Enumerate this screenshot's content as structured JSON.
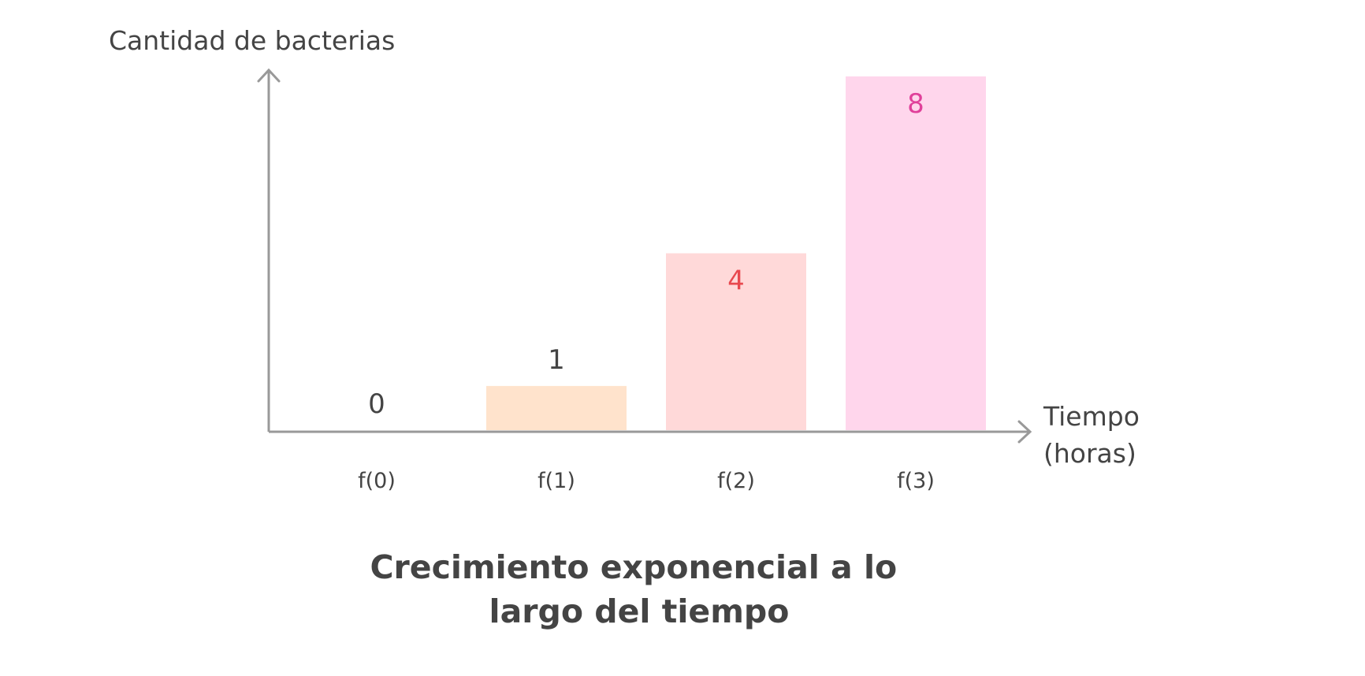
{
  "chart_data": {
    "type": "bar",
    "title": "Crecimiento exponencial a lo largo del tiempo",
    "title_lines": [
      "Crecimiento exponencial a lo",
      "largo del tiempo"
    ],
    "ylabel": "Cantidad de bacterias",
    "xlabel": "Tiempo (horas)",
    "xlabel_lines": [
      "Tiempo",
      "(horas)"
    ],
    "categories": [
      "f(0)",
      "f(1)",
      "f(2)",
      "f(3)"
    ],
    "values": [
      0,
      1,
      4,
      8
    ],
    "value_labels": [
      "0",
      "1",
      "4",
      "8"
    ],
    "ylim": [
      0,
      8
    ],
    "grid": false,
    "legend": "none",
    "colors": {
      "bars": [
        "#ffe3cc",
        "#ffe3cc",
        "#ffd9d9",
        "#ffd6ec"
      ],
      "value_text": [
        "#444444",
        "#444444",
        "#e8494f",
        "#e0409a"
      ],
      "axis": "#999999",
      "text": "#444444"
    }
  }
}
